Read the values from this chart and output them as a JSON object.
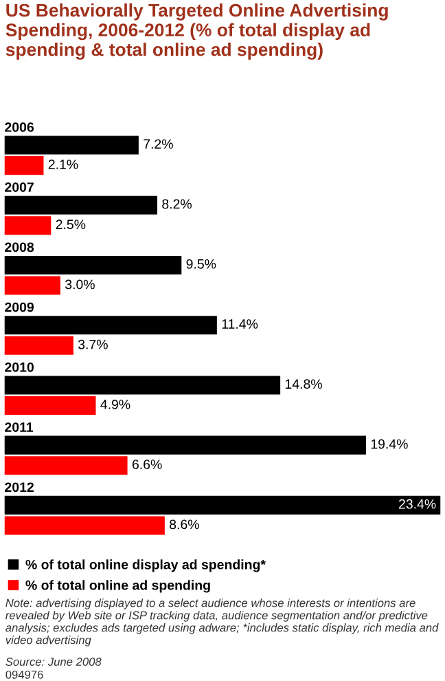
{
  "chart_data": {
    "type": "bar",
    "orientation": "horizontal",
    "title": "US Behaviorally Targeted Online Advertising Spending, 2006-2012 (% of total display ad spending & total online ad spending)",
    "categories": [
      "2006",
      "2007",
      "2008",
      "2009",
      "2010",
      "2011",
      "2012"
    ],
    "series": [
      {
        "name": "% of total online display ad spending*",
        "color": "#000000",
        "values": [
          7.2,
          8.2,
          9.5,
          11.4,
          14.8,
          19.4,
          23.4
        ],
        "value_labels": [
          "7.2%",
          "8.2%",
          "9.5%",
          "11.4%",
          "14.8%",
          "19.4%",
          "23.4%"
        ]
      },
      {
        "name": "% of total online ad spending",
        "color": "#ff0000",
        "values": [
          2.1,
          2.5,
          3.0,
          3.7,
          4.9,
          6.6,
          8.6
        ],
        "value_labels": [
          "2.1%",
          "2.5%",
          "3.0%",
          "3.7%",
          "4.9%",
          "6.6%",
          "8.6%"
        ]
      }
    ],
    "tick_labels": false,
    "legend": "bottom left",
    "annotations": [
      "Note: advertising displayed to a select audience whose interests or intentions are revealed by Web site or ISP tracking data, audience segmentation and/or predictive analysis; excludes ads targeted using adware; *includes static display, rich media and video advertising",
      "Source: June 2008",
      "094976"
    ]
  }
}
